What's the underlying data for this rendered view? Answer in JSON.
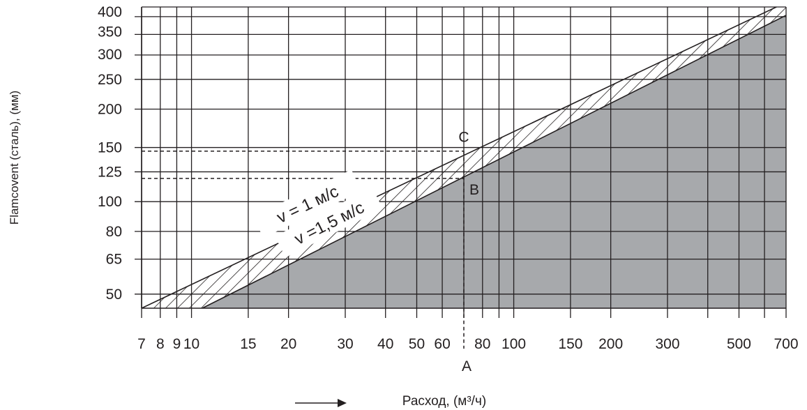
{
  "chart_data": {
    "type": "line",
    "x_scale": "log",
    "y_scale": "log",
    "xlim": [
      7,
      700
    ],
    "ylim": [
      45,
      430
    ],
    "grid": true,
    "x_ticks": [
      7,
      8,
      9,
      10,
      15,
      20,
      30,
      40,
      50,
      60,
      80,
      100,
      150,
      200,
      300,
      500,
      700
    ],
    "x_tick_labels": [
      "7",
      "8",
      "9",
      "10",
      "15",
      "20",
      "30",
      "40",
      "50",
      "60",
      "80",
      "100",
      "150",
      "200",
      "300",
      "500",
      "700"
    ],
    "y_ticks": [
      50,
      65,
      80,
      100,
      125,
      150,
      200,
      250,
      300,
      350,
      400
    ],
    "y_tick_labels": [
      "50",
      "65",
      "80",
      "100",
      "125",
      "150",
      "200",
      "250",
      "300",
      "350",
      "400"
    ],
    "extra_x_gridlines": [
      70,
      90,
      400,
      600
    ],
    "series": [
      {
        "name": "v = 1 м/с",
        "x": [
          7,
          700
        ],
        "y": [
          45.0,
          445
        ]
      },
      {
        "name": "v =1,5 м/с",
        "x": [
          10.8,
          700
        ],
        "y": [
          45.0,
          404
        ]
      }
    ],
    "example": {
      "x": 70,
      "y_B": 119,
      "y_C": 146,
      "labels": {
        "A": "A",
        "B": "B",
        "C": "C"
      }
    },
    "ylabel": "Flamcovent (сталь), (мм)",
    "xlabel": "Расход, (м³/ч)",
    "colors": {
      "shade": "#a7a9ac",
      "line": "#231f20",
      "grid": "#231f20"
    }
  }
}
